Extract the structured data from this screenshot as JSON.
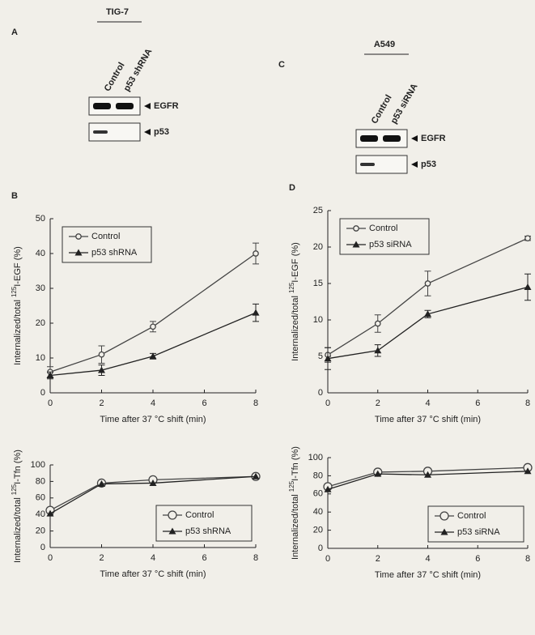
{
  "blots": [
    {
      "panel": "A",
      "cell": "TIG-7",
      "lanes": [
        "Control",
        "p53 shRNA"
      ],
      "bands": [
        "EGFR",
        "p53"
      ]
    },
    {
      "panel": "C",
      "cell": "A549",
      "lanes": [
        "Control",
        "p53 siRNA"
      ],
      "bands": [
        "EGFR",
        "p53"
      ]
    }
  ],
  "chart_data": [
    {
      "type": "line",
      "panel": "B",
      "xlabel": "Time after 37 °C shift (min)",
      "ylabel": [
        "Internalized/total ",
        "125",
        "I-EGF (%)"
      ],
      "x": [
        0,
        2,
        4,
        8
      ],
      "xlim": [
        0,
        8
      ],
      "xticks": [
        0,
        2,
        4,
        6,
        8
      ],
      "ylim": [
        0,
        50
      ],
      "yticks": [
        0,
        10,
        20,
        30,
        40,
        50
      ],
      "legend": "top-left",
      "series": [
        {
          "name": "Control",
          "color": "#444",
          "marker": "circle-open",
          "values": [
            6,
            11,
            19,
            40
          ],
          "errors": [
            1.5,
            2.5,
            1.5,
            3
          ]
        },
        {
          "name": "p53 shRNA",
          "color": "#222",
          "marker": "triangle",
          "values": [
            5,
            6.5,
            10.5,
            23
          ],
          "errors": [
            1,
            1.5,
            0.8,
            2.5
          ]
        }
      ]
    },
    {
      "type": "line",
      "panel": "D",
      "xlabel": "Time after 37 °C shift (min)",
      "ylabel": [
        "Internalized/total ",
        "125",
        "I-EGF (%)"
      ],
      "x": [
        0,
        2,
        4,
        8
      ],
      "xlim": [
        0,
        8
      ],
      "xticks": [
        0,
        2,
        4,
        6,
        8
      ],
      "ylim": [
        0,
        25
      ],
      "yticks": [
        0,
        5,
        10,
        15,
        20,
        25
      ],
      "legend": "top-left",
      "series": [
        {
          "name": "Control",
          "color": "#444",
          "marker": "circle-open",
          "values": [
            5.2,
            9.5,
            15,
            21.2
          ],
          "errors": [
            1,
            1.2,
            1.7,
            0.3
          ]
        },
        {
          "name": "p53 siRNA",
          "color": "#222",
          "marker": "triangle",
          "values": [
            4.7,
            5.8,
            10.8,
            14.5
          ],
          "errors": [
            1.5,
            0.8,
            0.5,
            1.8
          ]
        }
      ]
    },
    {
      "type": "line",
      "xlabel": "Time after 37 °C shift (min)",
      "ylabel": [
        "Internalized/total ",
        "125",
        "I-Tfn (%)"
      ],
      "x": [
        0,
        2,
        4,
        8
      ],
      "xlim": [
        0,
        8
      ],
      "xticks": [
        0,
        2,
        4,
        6,
        8
      ],
      "ylim": [
        0,
        100
      ],
      "yticks": [
        0,
        20,
        40,
        60,
        80,
        100
      ],
      "legend": "bottom-right",
      "series": [
        {
          "name": "Control",
          "color": "#444",
          "marker": "circle-open-big",
          "values": [
            45,
            78,
            82,
            86
          ]
        },
        {
          "name": "p53 shRNA",
          "color": "#222",
          "marker": "triangle",
          "values": [
            41,
            77,
            78,
            86
          ]
        }
      ]
    },
    {
      "type": "line",
      "xlabel": "Time after 37 °C shift (min)",
      "ylabel": [
        "Internalized/total ",
        "125",
        "I-Tfn (%)"
      ],
      "x": [
        0,
        2,
        4,
        8
      ],
      "xlim": [
        0,
        8
      ],
      "xticks": [
        0,
        2,
        4,
        6,
        8
      ],
      "ylim": [
        0,
        100
      ],
      "yticks": [
        0,
        20,
        40,
        60,
        80,
        100
      ],
      "legend": "bottom-right",
      "series": [
        {
          "name": "Control",
          "color": "#444",
          "marker": "circle-open-big",
          "values": [
            68,
            84,
            85,
            89
          ]
        },
        {
          "name": "p53 siRNA",
          "color": "#222",
          "marker": "triangle",
          "values": [
            65,
            82,
            81,
            85
          ]
        }
      ]
    }
  ]
}
